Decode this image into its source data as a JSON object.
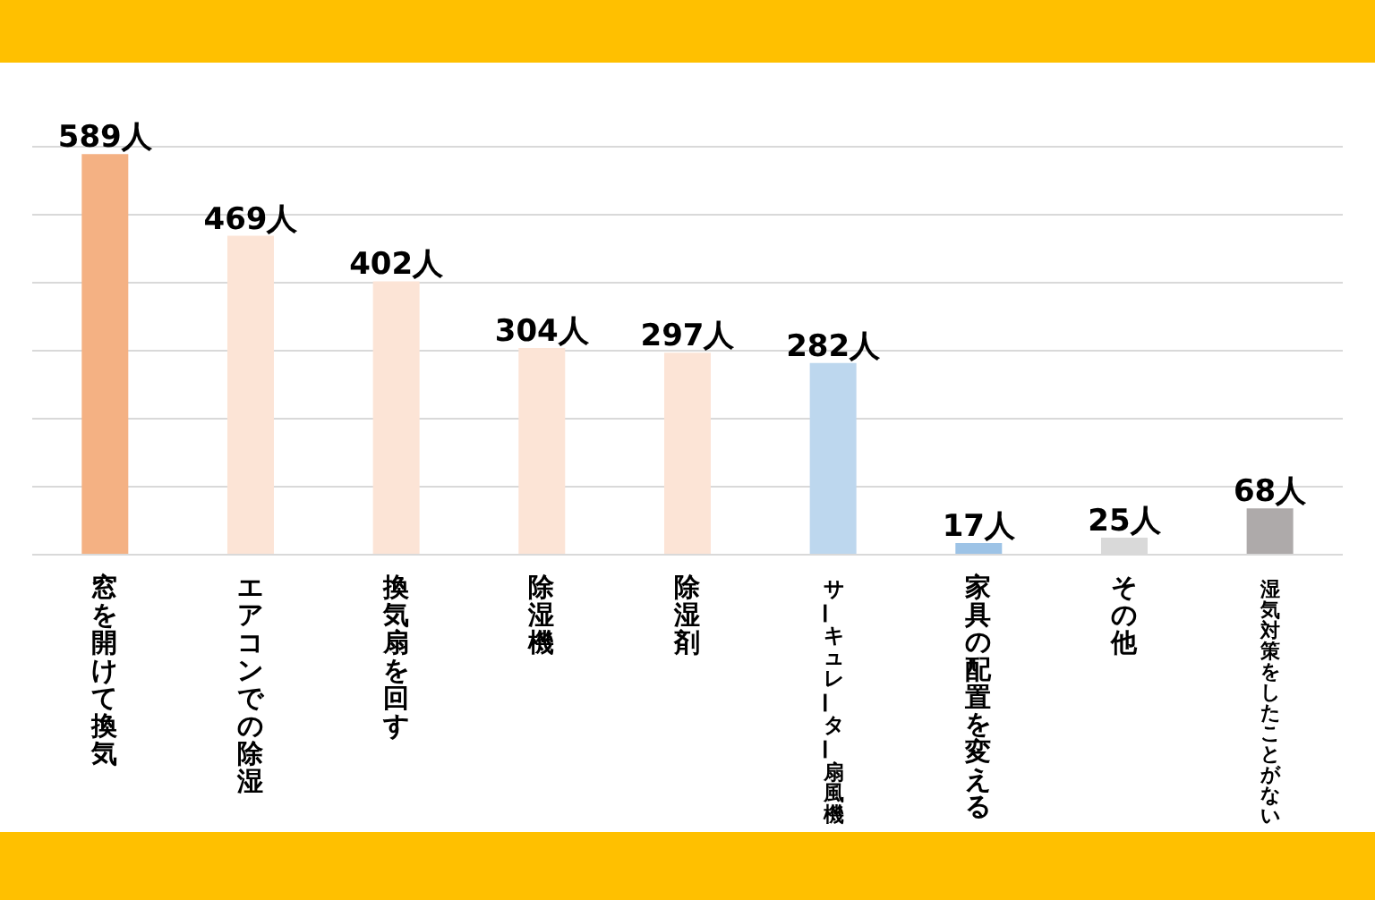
{
  "chart_data": {
    "type": "bar",
    "categories": [
      "窓を開けて換気",
      "エアコンでの除湿",
      "換気扇を回す",
      "除湿機",
      "除湿剤",
      "サーキュレーター扇風機",
      "家具の配置を変える",
      "その他",
      "湿気対策をしたことがない"
    ],
    "values": [
      589,
      469,
      402,
      304,
      297,
      282,
      17,
      25,
      68
    ],
    "colors": [
      "#f4b183",
      "#fce4d6",
      "#fce4d6",
      "#fce4d6",
      "#fce4d6",
      "#bdd7ee",
      "#9dc3e6",
      "#d9d9d9",
      "#aeaaaa"
    ],
    "value_labels": [
      "589人",
      "469人",
      "402人",
      "304人",
      "297人",
      "282人",
      "17人",
      "25人",
      "68人"
    ],
    "ylim": [
      0,
      600
    ],
    "yticks": [
      {
        "value": 0,
        "label": null
      },
      {
        "value": 100,
        "label": null
      },
      {
        "value": 200,
        "label": null
      },
      {
        "value": 300,
        "label": null
      },
      {
        "value": 400,
        "label": null
      },
      {
        "value": 500,
        "label": null
      },
      {
        "value": 600,
        "label": null
      }
    ],
    "tick_labels": "x",
    "grid": "y",
    "legend": false
  }
}
